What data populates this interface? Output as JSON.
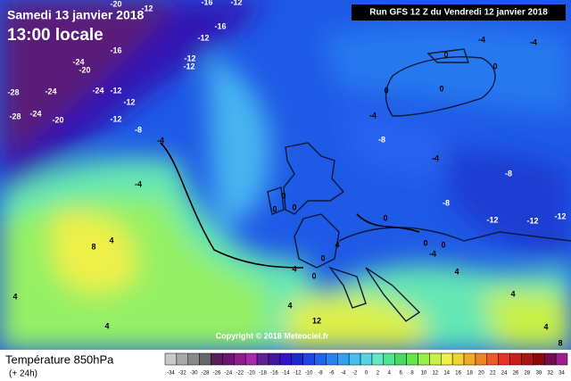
{
  "header": {
    "date": "Samedi 13 janvier 2018",
    "time": "13:00 locale",
    "run": "Run GFS 12 Z du Vendredi 12 janvier 2018"
  },
  "copyright": "Copyright © 2018 Meteociel.fr",
  "footer": {
    "title": "Température 850hPa",
    "lead": "(+ 24h)"
  },
  "scale": {
    "values": [
      -34,
      -32,
      -30,
      -28,
      -26,
      -24,
      -22,
      -20,
      -18,
      -16,
      -14,
      -12,
      -10,
      -8,
      -6,
      -4,
      -2,
      0,
      2,
      4,
      6,
      8,
      10,
      12,
      14,
      16,
      18,
      20,
      22,
      24,
      26,
      28,
      30,
      32,
      34
    ],
    "colors": [
      "#c8c8c8",
      "#a8a8a8",
      "#888888",
      "#686868",
      "#5a1e5a",
      "#6e1478",
      "#8c1e8c",
      "#aa28aa",
      "#641e96",
      "#4614a0",
      "#3214c8",
      "#1e28d2",
      "#1e46e6",
      "#1e64f0",
      "#2882f0",
      "#32a0f0",
      "#46bef0",
      "#5ad2e6",
      "#64e6c8",
      "#50e696",
      "#46dc64",
      "#64e646",
      "#96f046",
      "#c8f046",
      "#f0f046",
      "#f0d232",
      "#f0aa28",
      "#f08228",
      "#f05a28",
      "#e63228",
      "#c81e1e",
      "#aa1414",
      "#8c0a0a",
      "#780a50",
      "#a01e8c"
    ]
  },
  "contours": [
    -20,
    -12,
    -16,
    -12,
    -12,
    -16,
    -12,
    -12,
    -16,
    -24,
    -20,
    -28,
    -24,
    -24,
    -12,
    -12,
    -12,
    -28,
    -24,
    -20,
    -8,
    -4,
    -4,
    -4,
    -4,
    0,
    0,
    0,
    0,
    -4,
    -8,
    -4,
    -8,
    -8,
    -12,
    -12,
    -12,
    0,
    0,
    0,
    0,
    0,
    -4,
    0,
    4,
    0,
    0,
    4,
    4,
    8,
    4,
    4,
    4,
    12,
    4,
    4,
    8,
    4
  ]
}
